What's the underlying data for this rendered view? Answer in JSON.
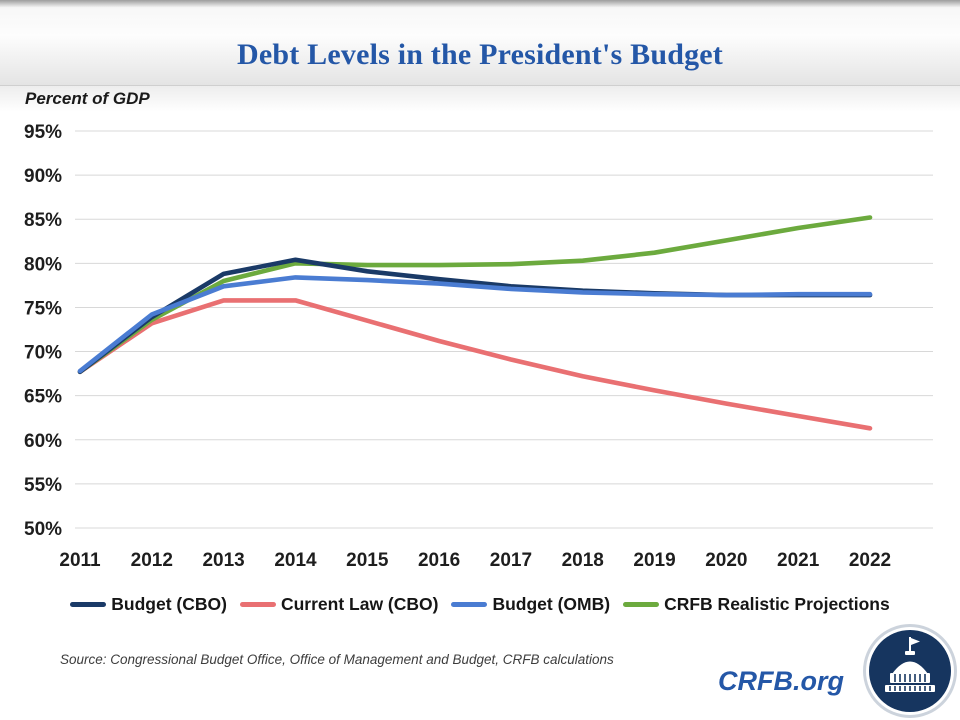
{
  "header": {
    "title": "Debt Levels in the President's Budget"
  },
  "y_axis_title": "Percent of GDP",
  "chart_data": {
    "type": "line",
    "title": "Debt Levels in the President's Budget",
    "ylabel": "Percent of GDP",
    "categories": [
      "2011",
      "2012",
      "2013",
      "2014",
      "2015",
      "2016",
      "2017",
      "2018",
      "2019",
      "2020",
      "2021",
      "2022"
    ],
    "ylim": [
      50,
      95
    ],
    "ytick_step": 5,
    "ytick_suffix": "%",
    "grid": true,
    "legend_position": "bottom",
    "series": [
      {
        "name": "Budget (CBO)",
        "color": "#1a3a67",
        "z": 3,
        "values": [
          67.7,
          73.9,
          78.8,
          80.4,
          79.1,
          78.2,
          77.4,
          76.9,
          76.6,
          76.4,
          76.4,
          76.4
        ]
      },
      {
        "name": "Current Law (CBO)",
        "color": "#e97072",
        "z": 1,
        "values": [
          67.7,
          73.2,
          75.8,
          75.8,
          73.5,
          71.2,
          69.1,
          67.2,
          65.6,
          64.1,
          62.7,
          61.3
        ]
      },
      {
        "name": "Budget (OMB)",
        "color": "#4a7cd2",
        "z": 4,
        "values": [
          67.8,
          74.2,
          77.4,
          78.4,
          78.1,
          77.7,
          77.1,
          76.7,
          76.5,
          76.4,
          76.5,
          76.5
        ]
      },
      {
        "name": "CRFB Realistic Projections",
        "color": "#6caa3e",
        "z": 2,
        "values": [
          67.7,
          73.6,
          78.0,
          80.0,
          79.8,
          79.8,
          79.9,
          80.3,
          81.2,
          82.6,
          84.0,
          85.2
        ]
      }
    ]
  },
  "footer": {
    "source": "Source: Congressional Budget Office, Office of Management and Budget, CRFB calculations",
    "brand": "CRFB.org"
  },
  "colors": {
    "title_blue": "#2457a7",
    "grid": "#d8d8d8",
    "axis_text": "#1e1e1e",
    "source_text": "#3d3d3d",
    "logo_navy": "#16355f",
    "logo_ring": "#ccd3dc"
  }
}
